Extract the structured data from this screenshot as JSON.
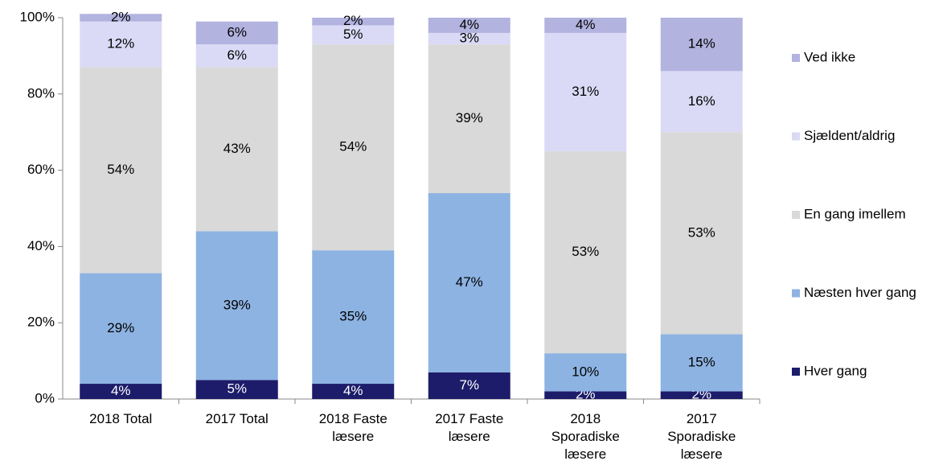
{
  "chart_data": {
    "type": "stacked-bar",
    "categories": [
      "2018 Total",
      "2017 Total",
      "2018 Faste læsere",
      "2017 Faste læsere",
      "2018 Sporadiske læsere",
      "2017 Sporadiske læsere"
    ],
    "series": [
      {
        "name": "Hver gang",
        "color": "#1c1c6a",
        "values": [
          4,
          5,
          4,
          7,
          2,
          2
        ],
        "value_labels": [
          "4%",
          "5%",
          "4%",
          "7%",
          "2%",
          "2%"
        ]
      },
      {
        "name": "Næsten hver gang",
        "color": "#8db3e2",
        "values": [
          29,
          39,
          35,
          47,
          10,
          15
        ],
        "value_labels": [
          "29%",
          "39%",
          "35%",
          "47%",
          "10%",
          "15%"
        ]
      },
      {
        "name": "En gang imellem",
        "color": "#d9d9d9",
        "values": [
          54,
          43,
          54,
          39,
          53,
          53
        ],
        "value_labels": [
          "54%",
          "43%",
          "54%",
          "39%",
          "53%",
          "53%"
        ]
      },
      {
        "name": "Sjældent/aldrig",
        "color": "#dadaf6",
        "values": [
          12,
          6,
          5,
          3,
          31,
          16
        ],
        "value_labels": [
          "12%",
          "6%",
          "5%",
          "3%",
          "31%",
          "16%"
        ]
      },
      {
        "name": "Ved ikke",
        "color": "#b3b3e0",
        "values": [
          2,
          6,
          2,
          4,
          4,
          14
        ],
        "value_labels": [
          "2%",
          "6%",
          "2%",
          "4%",
          "4%",
          "14%"
        ]
      }
    ],
    "ylim": [
      0,
      100
    ],
    "yticks": [
      {
        "value": 0,
        "label": "0%"
      },
      {
        "value": 20,
        "label": "20%"
      },
      {
        "value": 40,
        "label": "40%"
      },
      {
        "value": 60,
        "label": "60%"
      },
      {
        "value": 80,
        "label": "80%"
      },
      {
        "value": 100,
        "label": "100%"
      }
    ],
    "legend": "right"
  }
}
